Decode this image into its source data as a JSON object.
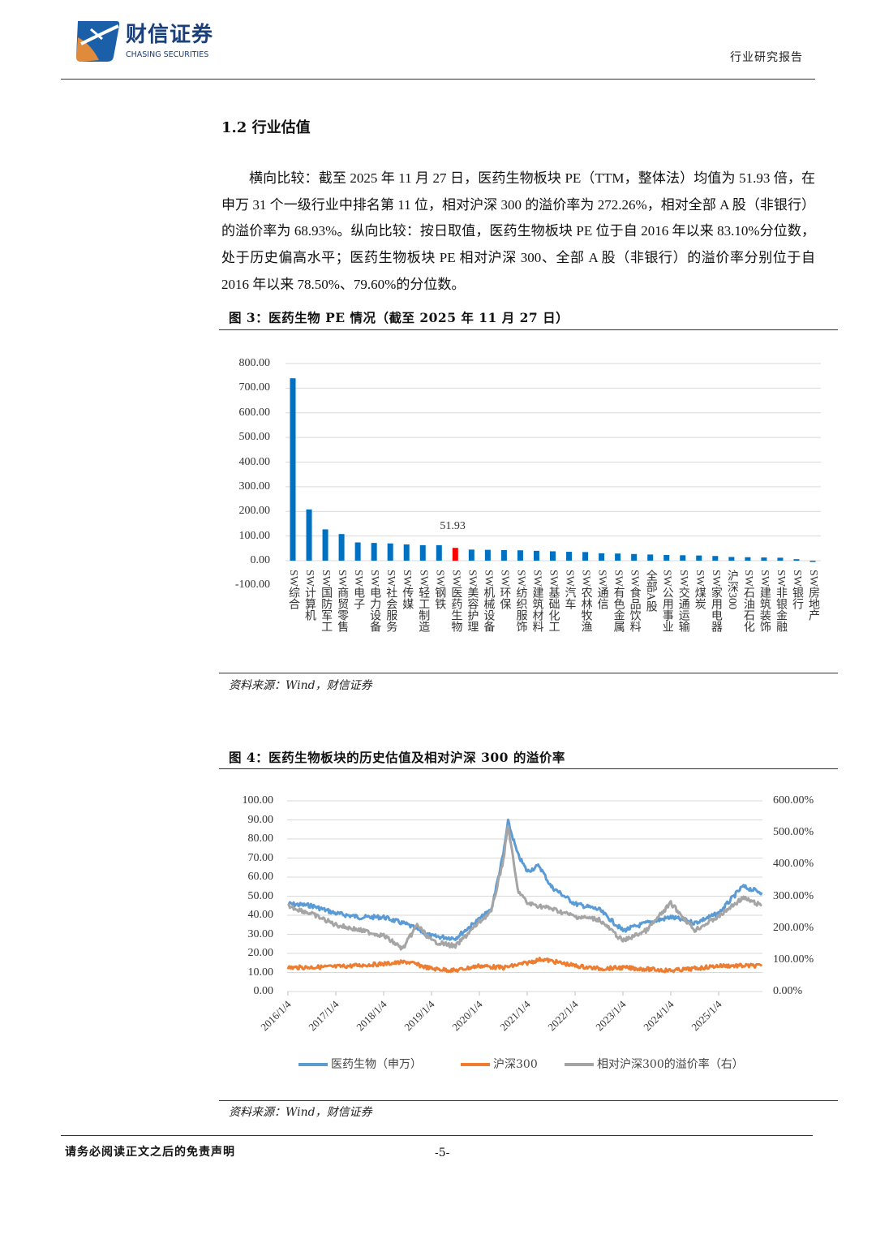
{
  "header": {
    "brand_cn": "财信证券",
    "brand_en": "CHASING SECURITIES",
    "report_type": "行业研究报告"
  },
  "section": {
    "heading": "1.2 行业估值",
    "paragraph": "横向比较：截至 2025 年 11 月 27 日，医药生物板块 PE（TTM，整体法）均值为 51.93 倍，在申万 31 个一级行业中排名第 11 位，相对沪深 300 的溢价率为 272.26%，相对全部 A 股（非银行）的溢价率为 68.93%。纵向比较：按日取值，医药生物板块 PE 位于自 2016 年以来 83.10%分位数，处于历史偏高水平；医药生物板块 PE 相对沪深 300、全部 A 股（非银行）的溢价率分别位于自 2016 年以来 78.50%、79.60%的分位数。"
  },
  "figure3": {
    "title": "图 3：医药生物 PE 情况（截至 2025 年 11 月 27 日）",
    "source": "资料来源：Wind，财信证券"
  },
  "figure4": {
    "title": "图 4：医药生物板块的历史估值及相对沪深 300 的溢价率",
    "source": "资料来源：Wind，财信证券"
  },
  "footer": {
    "disclaimer": "请务必阅读正文之后的免责声明",
    "page": "-5-"
  },
  "colors": {
    "blue": "#0070C0",
    "highlight": "#FF0000",
    "line_blue": "#5B9BD5",
    "line_orange": "#ED7D31",
    "line_gray": "#A5A5A5"
  },
  "chart_data": [
    {
      "type": "bar",
      "title": "图 3：医药生物 PE 情况（截至 2025 年 11 月 27 日）",
      "categories": [
        "SW综合",
        "SW计算机",
        "SW国防军工",
        "SW商贸零售",
        "SW电子",
        "SW电力设备",
        "SW社会服务",
        "SW传媒",
        "SW轻工制造",
        "SW钢铁",
        "SW医药生物",
        "SW美容护理",
        "SW机械设备",
        "SW环保",
        "SW纺织服饰",
        "SW建筑材料",
        "SW基础化工",
        "SW汽车",
        "SW农林牧渔",
        "SW通信",
        "SW有色金属",
        "SW食品饮料",
        "全部A股",
        "SW公用事业",
        "SW交通运输",
        "SW煤炭",
        "SW家用电器",
        "沪深300",
        "SW石油石化",
        "SW建筑装饰",
        "SW非银金融",
        "SW银行",
        "SW房地产"
      ],
      "values": [
        740,
        208,
        127,
        108,
        74,
        72,
        70,
        66,
        63,
        63,
        51.93,
        45,
        44,
        43,
        42,
        40,
        38,
        36,
        35,
        30,
        29,
        27,
        25,
        23,
        22,
        21,
        19,
        15,
        14,
        13,
        12,
        6,
        -5
      ],
      "highlight_index": 10,
      "data_label": "51.93",
      "yticks": [
        "800.00",
        "700.00",
        "600.00",
        "500.00",
        "400.00",
        "300.00",
        "200.00",
        "100.00",
        "0.00",
        "-100.00"
      ],
      "ylim": [
        -100,
        800
      ],
      "grid": true
    },
    {
      "type": "line",
      "title": "图 4：医药生物板块的历史估值及相对沪深 300 的溢价率",
      "xticks": [
        "2016/1/4",
        "2017/1/4",
        "2018/1/4",
        "2019/1/4",
        "2020/1/4",
        "2021/1/4",
        "2022/1/4",
        "2023/1/4",
        "2024/1/4",
        "2025/1/4"
      ],
      "yticks_left": [
        "100.00",
        "90.00",
        "80.00",
        "70.00",
        "60.00",
        "50.00",
        "40.00",
        "30.00",
        "20.00",
        "10.00",
        "0.00"
      ],
      "yticks_right": [
        "600.00%",
        "500.00%",
        "400.00%",
        "300.00%",
        "200.00%",
        "100.00%",
        "0.00%"
      ],
      "ylim_left": [
        0,
        100
      ],
      "ylim_right": [
        0,
        600
      ],
      "legend_position": "bottom",
      "series": [
        {
          "name": "医药生物（申万）",
          "axis": "left",
          "x": [
            2016.0,
            2016.5,
            2017.0,
            2017.5,
            2018.0,
            2018.5,
            2019.0,
            2019.5,
            2020.0,
            2020.25,
            2020.5,
            2020.6,
            2020.8,
            2021.0,
            2021.25,
            2021.5,
            2022.0,
            2022.5,
            2023.0,
            2023.5,
            2024.0,
            2024.5,
            2025.0,
            2025.5,
            2025.9
          ],
          "y": [
            46,
            45,
            41,
            39,
            39,
            35,
            29,
            28,
            38,
            43,
            72,
            89,
            72,
            63,
            66,
            55,
            46,
            43,
            32,
            36,
            39,
            36,
            41,
            55,
            52
          ]
        },
        {
          "name": "沪深300",
          "axis": "left",
          "x": [
            2016.0,
            2017.0,
            2018.0,
            2018.5,
            2019.0,
            2019.5,
            2020.0,
            2020.5,
            2021.0,
            2021.3,
            2022.0,
            2022.5,
            2023.0,
            2024.0,
            2024.5,
            2025.0,
            2025.9
          ],
          "y": [
            12.5,
            13.0,
            14.5,
            15.5,
            12.0,
            11.0,
            13.5,
            12.5,
            15.0,
            17.0,
            13.5,
            12.0,
            12.5,
            11.0,
            12.0,
            13.5,
            13.5
          ]
        },
        {
          "name": "相对沪深300的溢价率（右）",
          "axis": "right",
          "x": [
            2016.0,
            2016.5,
            2017.0,
            2017.5,
            2018.0,
            2018.4,
            2018.7,
            2019.0,
            2019.5,
            2020.0,
            2020.25,
            2020.5,
            2020.6,
            2020.8,
            2021.0,
            2021.5,
            2022.0,
            2022.5,
            2023.0,
            2023.5,
            2024.0,
            2024.3,
            2024.5,
            2025.0,
            2025.5,
            2025.9
          ],
          "y": [
            270,
            244,
            210,
            193,
            176,
            134,
            210,
            159,
            142,
            219,
            252,
            414,
            523,
            320,
            278,
            261,
            236,
            227,
            159,
            193,
            278,
            227,
            193,
            236,
            295,
            270
          ]
        }
      ]
    }
  ]
}
